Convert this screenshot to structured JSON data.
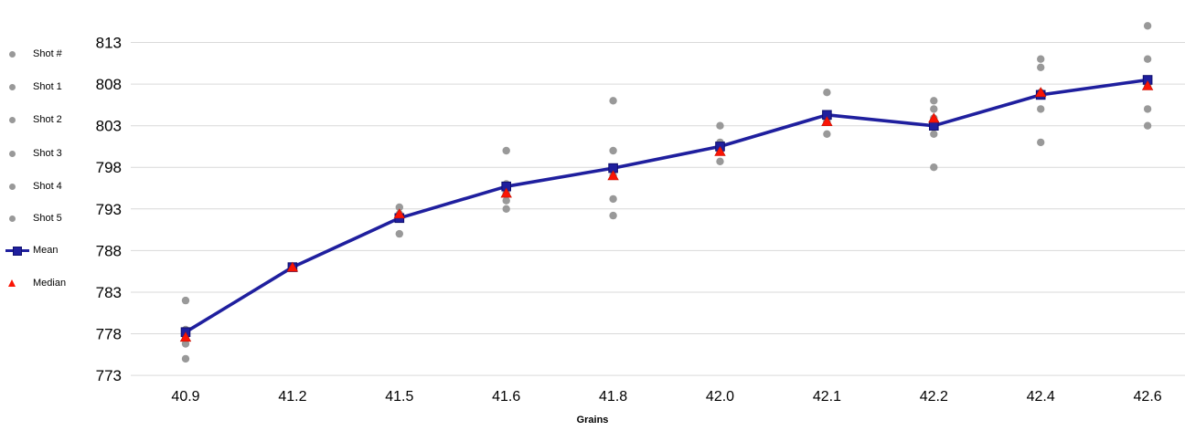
{
  "chart_data": {
    "type": "scatter",
    "title": "",
    "xlabel": "Grains",
    "ylabel": "",
    "categories": [
      "40.9",
      "41.2",
      "41.5",
      "41.6",
      "41.8",
      "42.0",
      "42.1",
      "42.2",
      "42.4",
      "42.6"
    ],
    "y_ticks": [
      773,
      778,
      783,
      788,
      793,
      798,
      803,
      808,
      813
    ],
    "ylim": [
      771.5,
      818.5
    ],
    "grid": "horizontal",
    "legend_position": "left",
    "series": [
      {
        "name": "Shot #",
        "type": "scatter",
        "marker": "circle",
        "values": [
          782,
          786,
          793.2,
          800,
          806,
          803,
          807,
          806,
          811,
          815
        ]
      },
      {
        "name": "Shot 1",
        "type": "scatter",
        "marker": "circle",
        "values": [
          778.5,
          786,
          792.4,
          796,
          800,
          801,
          804.3,
          805,
          810,
          811
        ]
      },
      {
        "name": "Shot 2",
        "type": "scatter",
        "marker": "circle",
        "values": [
          778.2,
          786,
          791.9,
          795.7,
          797.9,
          800.5,
          804.3,
          803.9,
          807,
          808.5
        ]
      },
      {
        "name": "Shot 3",
        "type": "scatter",
        "marker": "circle",
        "values": [
          777.6,
          786,
          791.9,
          794.9,
          797,
          799.9,
          803.5,
          803,
          806.7,
          807.8
        ]
      },
      {
        "name": "Shot 4",
        "type": "scatter",
        "marker": "circle",
        "values": [
          776.8,
          786,
          791.9,
          794,
          794.2,
          799.9,
          803.5,
          802,
          805,
          805
        ]
      },
      {
        "name": "Shot 5",
        "type": "scatter",
        "marker": "circle",
        "values": [
          775,
          786,
          790,
          793,
          792.2,
          798.7,
          802,
          798,
          801,
          803
        ]
      },
      {
        "name": "Mean",
        "type": "line",
        "marker": "square",
        "values": [
          778.2,
          786.0,
          791.9,
          795.7,
          797.9,
          800.5,
          804.3,
          803.0,
          806.7,
          808.5
        ]
      },
      {
        "name": "Median",
        "type": "scatter",
        "marker": "triangle",
        "values": [
          777.6,
          786.0,
          792.4,
          794.9,
          797.0,
          799.9,
          803.5,
          803.9,
          807.0,
          807.8
        ]
      }
    ],
    "colors": {
      "shot_gray": "#999999",
      "mean_navy": "#1F1F9E",
      "mean_navy_border": "#10106E",
      "median_red": "#FA1505",
      "median_red_border": "#C41104",
      "gridline": "#D9D9D9",
      "tick_text": "#000000"
    },
    "legend": [
      {
        "label": "Shot #",
        "marker": "circle"
      },
      {
        "label": "Shot 1",
        "marker": "circle"
      },
      {
        "label": "Shot 2",
        "marker": "circle"
      },
      {
        "label": "Shot 3",
        "marker": "circle"
      },
      {
        "label": "Shot 4",
        "marker": "circle"
      },
      {
        "label": "Shot 5",
        "marker": "circle"
      },
      {
        "label": "Mean",
        "marker": "line-square"
      },
      {
        "label": "Median",
        "marker": "triangle"
      }
    ]
  }
}
